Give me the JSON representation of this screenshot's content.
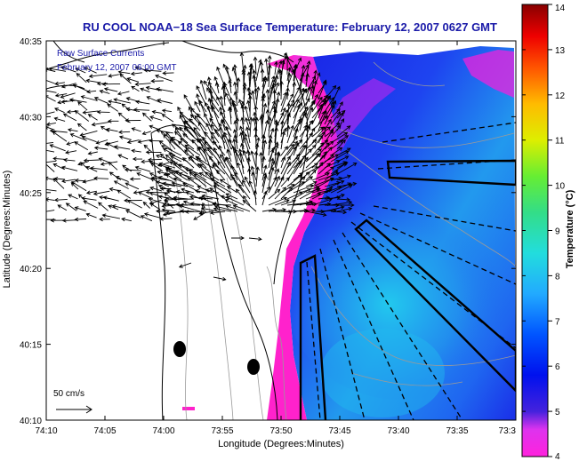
{
  "title": "RU COOL  NOAA−18  Sea Surface Temperature:  February 12, 2007 0627 GMT",
  "overlay_line1": "Raw Surface Currents",
  "overlay_line2": "February 12, 2007 06:00 GMT",
  "scale_label": "50 cm/s",
  "xlabel": "Longitude (Degrees:Minutes)",
  "ylabel": "Latitude (Degrees:Minutes)",
  "x_ticks": [
    "74:10",
    "74:05",
    "74:00",
    "73:55",
    "73:50",
    "73:45",
    "73:40",
    "73:35",
    "73:3"
  ],
  "y_ticks": [
    "40:10",
    "40:15",
    "40:20",
    "40:25",
    "40:30",
    "40:35"
  ],
  "colorbar": {
    "label": "Temperature (°C)",
    "ticks": [
      "4",
      "5",
      "6",
      "7",
      "8",
      "9",
      "10",
      "11",
      "12",
      "13",
      "14"
    ],
    "min": 4,
    "max": 14
  },
  "colors": {
    "title": "#1a1aa8",
    "land_outline": "#000000",
    "cold_band": "#ff33cc",
    "sst_blue": "#2233ee",
    "sst_cyan": "#22aaee"
  }
}
